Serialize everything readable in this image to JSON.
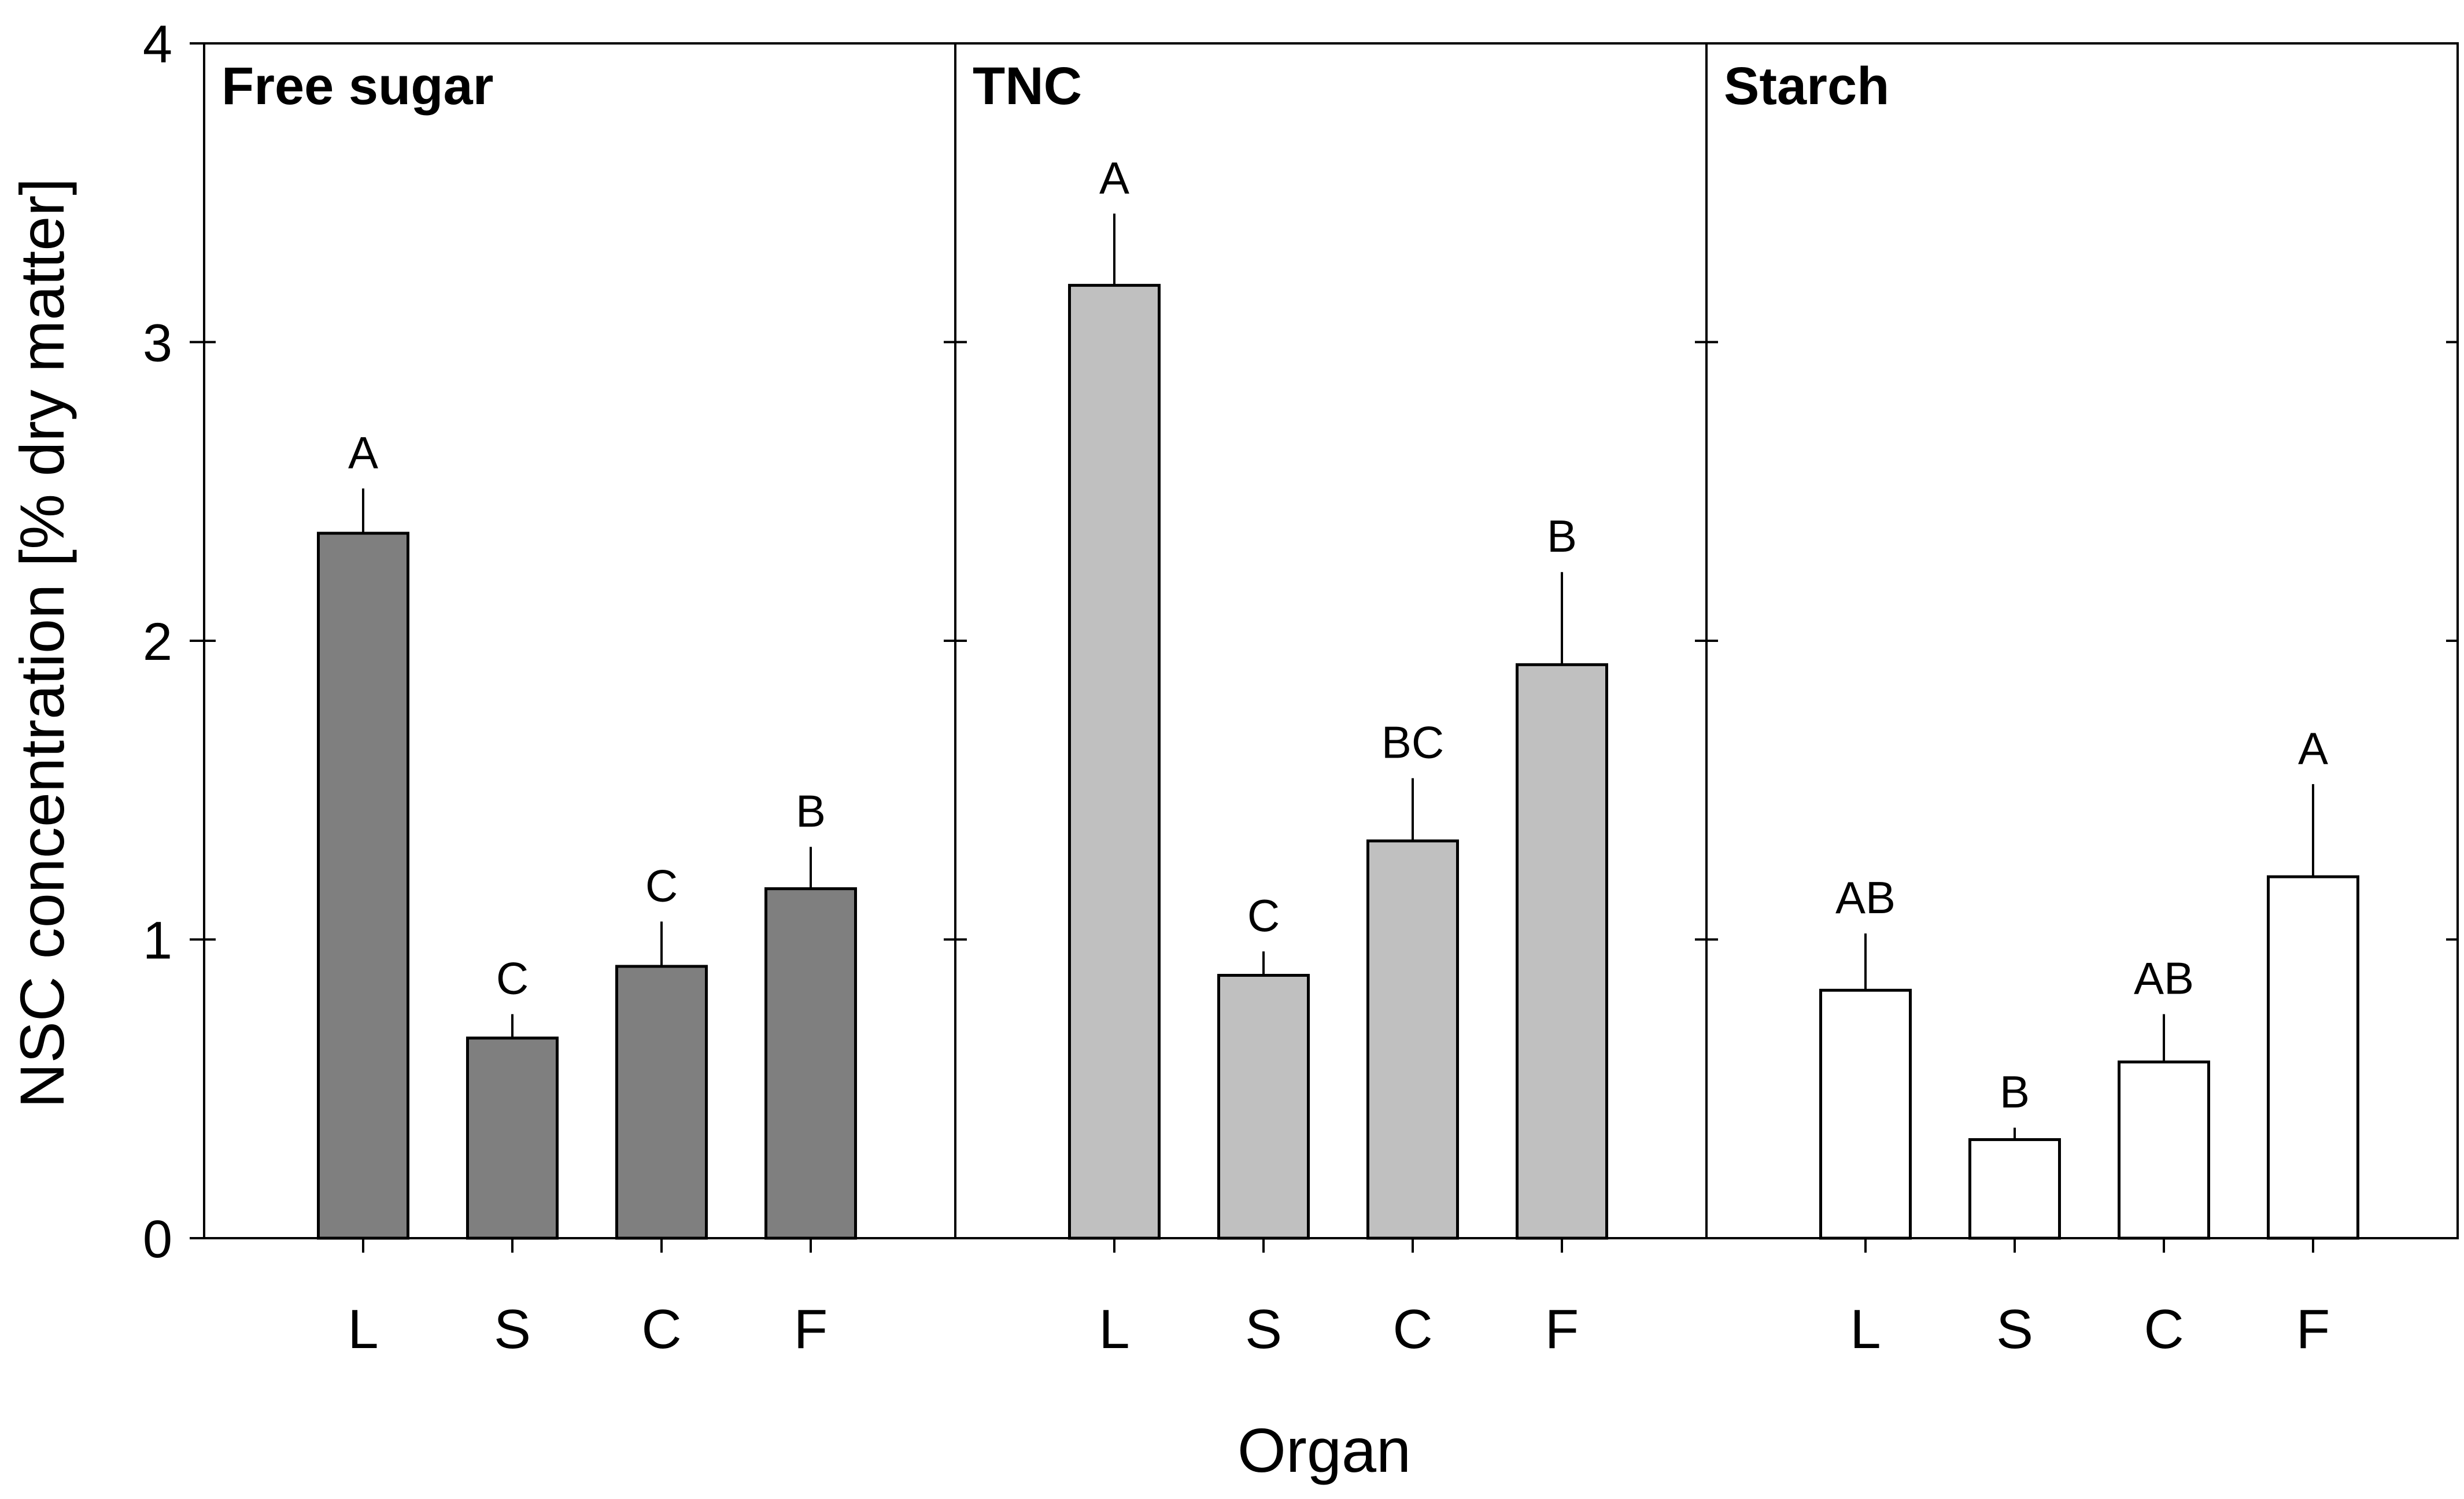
{
  "chart_data": {
    "type": "bar",
    "ylabel": "NSC concentration [% dry matter]",
    "xlabel": "Organ",
    "ylim": [
      0,
      4
    ],
    "yticks": [
      0,
      1,
      2,
      3,
      4
    ],
    "categories": [
      "L",
      "S",
      "C",
      "F"
    ],
    "panels": [
      {
        "title": "Free sugar",
        "color": "#7f7f7f",
        "values": [
          2.36,
          0.67,
          0.91,
          1.17
        ],
        "errors": [
          0.15,
          0.08,
          0.15,
          0.14
        ],
        "letters": [
          "A",
          "C",
          "C",
          "B"
        ]
      },
      {
        "title": "TNC",
        "color": "#c0c0c0",
        "values": [
          3.19,
          0.88,
          1.33,
          1.92
        ],
        "errors": [
          0.24,
          0.08,
          0.21,
          0.31
        ],
        "letters": [
          "A",
          "C",
          "BC",
          "B"
        ]
      },
      {
        "title": "Starch",
        "color": "#ffffff",
        "values": [
          0.83,
          0.33,
          0.59,
          1.21
        ],
        "errors": [
          0.19,
          0.04,
          0.16,
          0.31
        ],
        "letters": [
          "AB",
          "B",
          "AB",
          "A"
        ]
      }
    ]
  }
}
